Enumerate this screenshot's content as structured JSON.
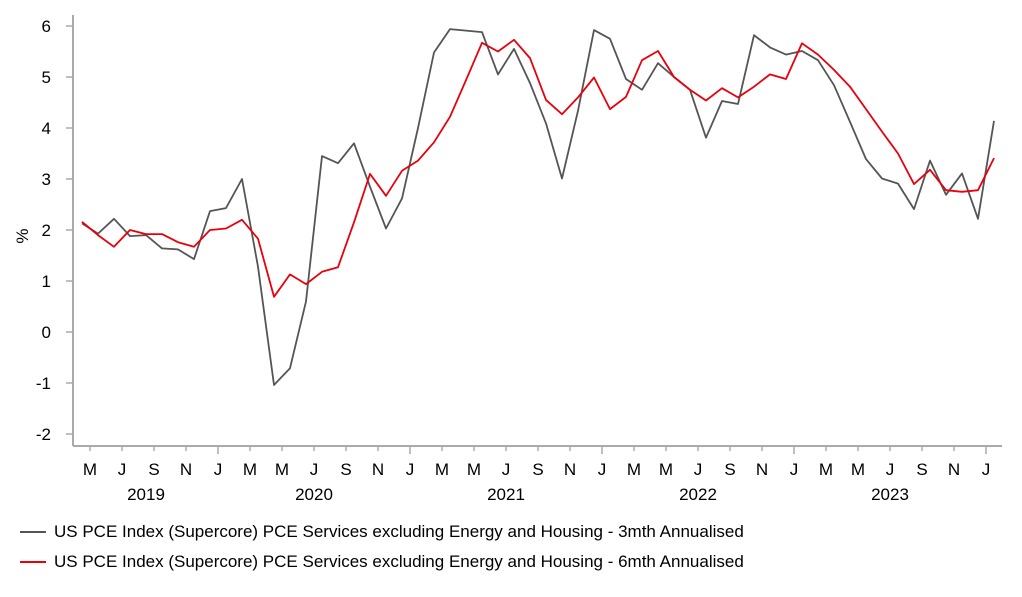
{
  "chart_data": {
    "type": "line",
    "title": "",
    "xlabel": "",
    "ylabel": "%",
    "ylim": [
      -2,
      6
    ],
    "yticks": [
      -2,
      -1,
      0,
      1,
      2,
      3,
      4,
      5,
      6
    ],
    "x_start": "2019-04",
    "x_end": "2024-01",
    "x_month_labels": [
      "M",
      "J",
      "S",
      "N",
      "J",
      "M",
      "M",
      "J",
      "S",
      "N",
      "J",
      "M",
      "M",
      "J",
      "S",
      "N",
      "J",
      "M",
      "M",
      "J",
      "S",
      "N",
      "J",
      "M",
      "M",
      "J",
      "S",
      "N",
      "J"
    ],
    "x_year_labels": [
      "2019",
      "2020",
      "2021",
      "2022",
      "2023"
    ],
    "legend_position": "bottom",
    "series": [
      {
        "name": "US PCE Index (Supercore) PCE Services excluding Energy and Housing - 3mth Annualised",
        "color": "#555555",
        "values": [
          2.13,
          1.93,
          2.22,
          1.88,
          1.9,
          1.64,
          1.62,
          1.43,
          2.37,
          2.43,
          3.0,
          1.28,
          -1.04,
          -0.71,
          0.6,
          3.45,
          3.31,
          3.7,
          2.85,
          2.03,
          2.62,
          4.0,
          5.48,
          5.94,
          5.91,
          5.88,
          5.05,
          5.55,
          4.88,
          4.09,
          3.01,
          4.34,
          5.92,
          5.75,
          4.96,
          4.75,
          5.27,
          5.0,
          4.75,
          3.81,
          4.53,
          4.47,
          5.82,
          5.58,
          5.44,
          5.51,
          5.33,
          4.84,
          4.12,
          3.39,
          3.01,
          2.91,
          2.41,
          3.36,
          2.69,
          3.11,
          2.22,
          4.14
        ]
      },
      {
        "name": "US PCE Index (Supercore) PCE Services excluding Energy and Housing - 6mth Annualised",
        "color": "#e8000b",
        "values": [
          2.16,
          1.9,
          1.67,
          2.0,
          1.92,
          1.92,
          1.76,
          1.67,
          2.0,
          2.03,
          2.2,
          1.83,
          0.69,
          1.13,
          0.94,
          1.18,
          1.27,
          2.15,
          3.1,
          2.67,
          3.16,
          3.36,
          3.72,
          4.22,
          4.94,
          5.67,
          5.5,
          5.73,
          5.37,
          4.55,
          4.27,
          4.6,
          4.99,
          4.37,
          4.61,
          5.33,
          5.51,
          5.0,
          4.75,
          4.54,
          4.78,
          4.6,
          4.81,
          5.05,
          4.96,
          5.66,
          5.44,
          5.14,
          4.81,
          4.37,
          3.93,
          3.5,
          2.9,
          3.18,
          2.78,
          2.75,
          2.78,
          3.41
        ]
      }
    ]
  }
}
